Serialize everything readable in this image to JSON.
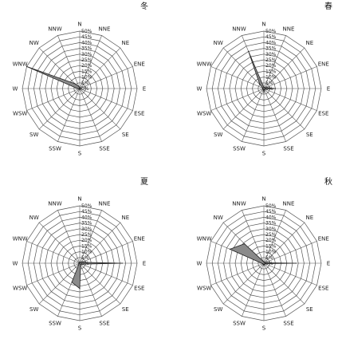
{
  "chart_data": [
    {
      "type": "radar",
      "title": "冬",
      "directions": [
        "N",
        "NNE",
        "NE",
        "ENE",
        "E",
        "ESE",
        "SE",
        "SSE",
        "S",
        "SSW",
        "SW",
        "WSW",
        "W",
        "WNW",
        "NW",
        "NNW"
      ],
      "radial_ticks": [
        "0%",
        "5%",
        "10%",
        "15%",
        "20%",
        "25%",
        "30%",
        "35%",
        "40%",
        "45%",
        "50%"
      ],
      "rlim": [
        0,
        50
      ],
      "values": [
        0.5,
        0.5,
        0.5,
        0.5,
        0.5,
        0.5,
        0.5,
        0.5,
        0.5,
        0.5,
        0.5,
        0.5,
        2,
        50,
        6,
        2
      ]
    },
    {
      "type": "radar",
      "title": "春",
      "directions": [
        "N",
        "NNE",
        "NE",
        "ENE",
        "E",
        "ESE",
        "SE",
        "SSE",
        "S",
        "SSW",
        "SW",
        "WSW",
        "W",
        "WNW",
        "NW",
        "NNW"
      ],
      "radial_ticks": [
        "0%",
        "5%",
        "10%",
        "15%",
        "20%",
        "25%",
        "30%",
        "35%",
        "40%",
        "45%",
        "50%"
      ],
      "rlim": [
        0,
        50
      ],
      "values": [
        1,
        1,
        1,
        2,
        10,
        1,
        1,
        1,
        4,
        1,
        1,
        1,
        1,
        1,
        5,
        35
      ]
    },
    {
      "type": "radar",
      "title": "夏",
      "directions": [
        "N",
        "NNE",
        "NE",
        "ENE",
        "E",
        "ESE",
        "SE",
        "SSE",
        "S",
        "SSW",
        "SW",
        "WSW",
        "W",
        "WNW",
        "NW",
        "NNW"
      ],
      "radial_ticks": [
        "0%",
        "5%",
        "10%",
        "15%",
        "20%",
        "25%",
        "30%",
        "35%",
        "40%",
        "45%",
        "50%"
      ],
      "rlim": [
        0,
        50
      ],
      "values": [
        0.5,
        0.5,
        1,
        2,
        37,
        2,
        1,
        2,
        22,
        18,
        1,
        0.5,
        0.5,
        0.5,
        0.5,
        0.5
      ]
    },
    {
      "type": "radar",
      "title": "秋",
      "directions": [
        "N",
        "NNE",
        "NE",
        "ENE",
        "E",
        "ESE",
        "SE",
        "SSE",
        "S",
        "SSW",
        "SW",
        "WSW",
        "W",
        "WNW",
        "NW",
        "NNW"
      ],
      "radial_ticks": [
        "0%",
        "5%",
        "10%",
        "15%",
        "20%",
        "25%",
        "30%",
        "35%",
        "40%",
        "45%",
        "50%"
      ],
      "rlim": [
        0,
        50
      ],
      "values": [
        1,
        1,
        1,
        1,
        28,
        1,
        1,
        1,
        2,
        1,
        1,
        1,
        2,
        32,
        24,
        2
      ]
    }
  ]
}
